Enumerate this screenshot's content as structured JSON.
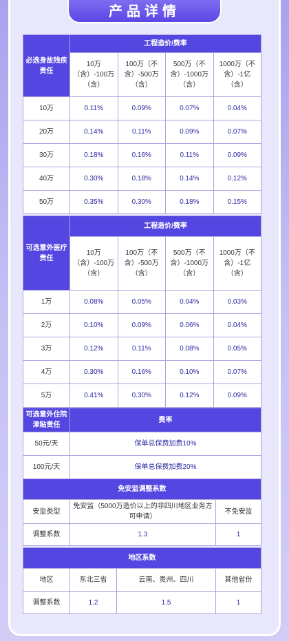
{
  "title": "产品详情",
  "table1": {
    "corner": "必选身故残疾责任",
    "group": "工程造价/费率",
    "cols": [
      "10万（含）-100万（含）",
      "100万（不含）-500万（含）",
      "500万（不含）-1000万（含）",
      "1000万（不含）-1亿（含）"
    ],
    "rows": [
      {
        "label": "10万",
        "values": [
          "0.11%",
          "0.09%",
          "0.07%",
          "0.04%"
        ]
      },
      {
        "label": "20万",
        "values": [
          "0.14%",
          "0.11%",
          "0.09%",
          "0.07%"
        ]
      },
      {
        "label": "30万",
        "values": [
          "0.18%",
          "0.16%",
          "0.11%",
          "0.09%"
        ]
      },
      {
        "label": "40万",
        "values": [
          "0.30%",
          "0.18%",
          "0.14%",
          "0.12%"
        ]
      },
      {
        "label": "50万",
        "values": [
          "0.35%",
          "0.30%",
          "0.18%",
          "0.15%"
        ]
      }
    ]
  },
  "table2": {
    "corner": "可选意外医疗责任",
    "group": "工程造价/费率",
    "cols": [
      "10万（含）-100万（含）",
      "100万（不含）-500万（含）",
      "500万（不含）-1000万（含）",
      "1000万（不含）-1亿（含）"
    ],
    "rows": [
      {
        "label": "1万",
        "values": [
          "0.08%",
          "0.05%",
          "0.04%",
          "0.03%"
        ]
      },
      {
        "label": "2万",
        "values": [
          "0.10%",
          "0.09%",
          "0.06%",
          "0.04%"
        ]
      },
      {
        "label": "3万",
        "values": [
          "0.12%",
          "0.11%",
          "0.08%",
          "0.05%"
        ]
      },
      {
        "label": "4万",
        "values": [
          "0.30%",
          "0.16%",
          "0.10%",
          "0.07%"
        ]
      },
      {
        "label": "5万",
        "values": [
          "0.41%",
          "0.30%",
          "0.12%",
          "0.09%"
        ]
      }
    ]
  },
  "table3": {
    "corner": "可选意外住院津贴责任",
    "group": "费率",
    "rows": [
      {
        "label": "50元/天",
        "value": "保单总保费加费10%"
      },
      {
        "label": "100元/天",
        "value": "保单总保费加费20%"
      }
    ]
  },
  "table4": {
    "header": "免安监调整系数",
    "row1_label": "安监类型",
    "row1_a": "免安监（5000万造价以上的非四川地区业务方可申请）",
    "row1_b": "不免安监",
    "row2_label": "调整系数",
    "row2_a": "1.3",
    "row2_b": "1"
  },
  "table5": {
    "header": "地区系数",
    "row1_label": "地区",
    "row1": [
      "东北三省",
      "云南、贵州、四川",
      "其他省份"
    ],
    "row2_label": "调整系数",
    "row2": [
      "1.2",
      "1.5",
      "1"
    ]
  }
}
